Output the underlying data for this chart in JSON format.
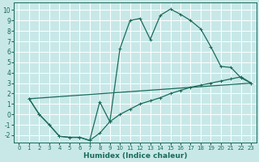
{
  "xlabel": "Humidex (Indice chaleur)",
  "bg_color": "#c8e8e8",
  "grid_color": "#e8f8f8",
  "line_color": "#1a6b5a",
  "xlim": [
    -0.5,
    23.5
  ],
  "ylim": [
    -2.7,
    10.7
  ],
  "xticks": [
    0,
    1,
    2,
    3,
    4,
    5,
    6,
    7,
    8,
    9,
    10,
    11,
    12,
    13,
    14,
    15,
    16,
    17,
    18,
    19,
    20,
    21,
    22,
    23
  ],
  "yticks": [
    -2,
    -1,
    0,
    1,
    2,
    3,
    4,
    5,
    6,
    7,
    8,
    9,
    10
  ],
  "curve1_x": [
    1,
    2,
    3,
    4,
    5,
    6,
    7,
    8,
    9,
    10,
    11,
    12,
    13,
    14,
    15,
    16,
    17,
    18,
    19,
    20,
    21,
    22,
    23
  ],
  "curve1_y": [
    1.5,
    0.0,
    -1.0,
    -2.1,
    -2.2,
    -2.2,
    -2.5,
    1.2,
    -0.7,
    6.3,
    9.0,
    9.2,
    7.2,
    9.5,
    10.1,
    9.6,
    9.0,
    8.2,
    6.5,
    4.6,
    4.5,
    3.5,
    3.0
  ],
  "curve2_x": [
    1,
    2,
    3,
    4,
    5,
    6,
    7,
    8,
    9,
    10,
    11,
    12,
    13,
    14,
    15,
    16,
    17,
    18,
    19,
    20,
    21,
    22,
    23
  ],
  "curve2_y": [
    1.5,
    0.0,
    -1.0,
    -2.1,
    -2.2,
    -2.2,
    -2.5,
    -1.8,
    -0.7,
    0.0,
    0.5,
    1.0,
    1.3,
    1.6,
    2.0,
    2.3,
    2.6,
    2.8,
    3.0,
    3.2,
    3.4,
    3.6,
    3.0
  ],
  "line3_x": [
    1,
    23
  ],
  "line3_y": [
    1.5,
    3.0
  ],
  "marker": "+",
  "marker_size": 3.0,
  "lw": 0.9,
  "xlabel_fontsize": 6.5,
  "tick_fontsize_x": 5.0,
  "tick_fontsize_y": 5.5
}
